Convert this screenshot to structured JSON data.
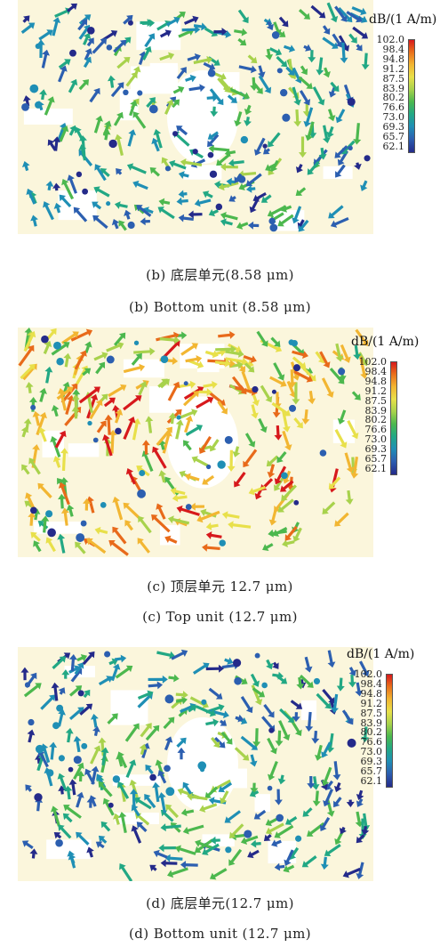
{
  "legend": {
    "unit": "dB/(1 A/m)",
    "ticks": [
      "102.0",
      "98.4",
      "94.8",
      "91.2",
      "87.5",
      "83.9",
      "80.2",
      "76.6",
      "73.0",
      "69.3",
      "65.7",
      "62.1"
    ]
  },
  "panels": [
    {
      "caption_cn": "",
      "caption_en": "",
      "field_range_db": [
        62.1,
        102.0
      ]
    },
    {
      "caption_cn": "(b) 底层单元(8.58 μm)",
      "caption_en": "(b) Bottom unit (8.58 μm)",
      "field_range_db": [
        62.1,
        102.0
      ]
    },
    {
      "caption_cn": "(c) 顶层单元 12.7 μm)",
      "caption_en": "(c) Top unit (12.7 μm)",
      "field_range_db": [
        62.1,
        102.0
      ]
    },
    {
      "caption_cn": "(d) 底层单元(12.7 μm)",
      "caption_en": "(d) Bottom unit (12.7 μm)",
      "field_range_db": [
        62.1,
        102.0
      ]
    }
  ]
}
